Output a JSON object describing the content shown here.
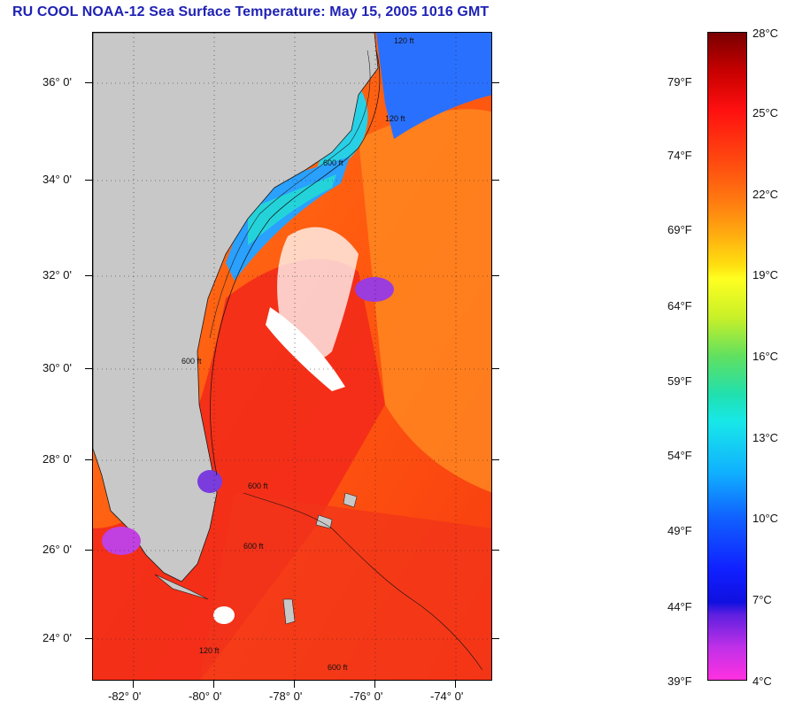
{
  "title": "RU COOL  NOAA-12  Sea Surface Temperature:  May 15, 2005 1016 GMT",
  "map": {
    "lat_labels": [
      "36° 0'",
      "34° 0'",
      "32° 0'",
      "30° 0'",
      "28° 0'",
      "26° 0'",
      "24° 0'"
    ],
    "lon_labels": [
      "-82° 0'",
      "-80° 0'",
      "-78° 0'",
      "-76° 0'",
      "-74° 0'"
    ],
    "contour_labels": [
      "120 ft",
      "600 ft",
      "120 ft",
      "600 ft",
      "600 ft",
      "600 ft",
      "600 ft",
      "120 ft"
    ],
    "colors": {
      "land": "#c8c8c8",
      "ocean_warm": "#ff5a10",
      "ocean_hot": "#f01810",
      "ocean_orange": "#ff8a1a",
      "cold_blue": "#1e6cff",
      "cyan": "#1ee6e6",
      "cloud": "#ffffff",
      "purple": "#9b3cdc"
    }
  },
  "colorbar": {
    "fahrenheit": [
      "79°F",
      "74°F",
      "69°F",
      "64°F",
      "59°F",
      "54°F",
      "49°F",
      "44°F",
      "39°F"
    ],
    "celsius": [
      "28°C",
      "25°C",
      "22°C",
      "19°C",
      "16°C",
      "13°C",
      "10°C",
      "7°C",
      "4°C"
    ]
  }
}
